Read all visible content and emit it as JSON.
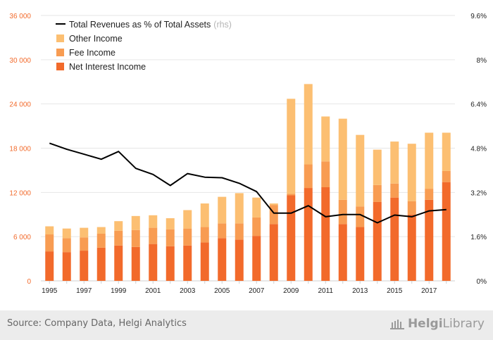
{
  "chart_data": {
    "type": "bar",
    "stacked": true,
    "categories": [
      "1995",
      "1996",
      "1997",
      "1998",
      "1999",
      "2000",
      "2001",
      "2002",
      "2003",
      "2004",
      "2005",
      "2006",
      "2007",
      "2008",
      "2009",
      "2010",
      "2011",
      "2012",
      "2013",
      "2014",
      "2015",
      "2016",
      "2017",
      "2018"
    ],
    "x_tick_labels": [
      "1995",
      "1997",
      "1999",
      "2001",
      "2003",
      "2005",
      "2007",
      "2009",
      "2011",
      "2013",
      "2015",
      "2017"
    ],
    "series": [
      {
        "name": "Net Interest Income",
        "color": "#f26a2b",
        "values": [
          4000,
          3900,
          4100,
          4500,
          4800,
          4600,
          5000,
          4700,
          4800,
          5200,
          5800,
          5600,
          6100,
          7700,
          11600,
          12600,
          12700,
          7700,
          7300,
          10700,
          11300,
          9000,
          11000,
          13400
        ]
      },
      {
        "name": "Fee Income",
        "color": "#f89c52",
        "values": [
          2300,
          1900,
          1800,
          1900,
          2000,
          2300,
          2200,
          2300,
          2300,
          2100,
          2000,
          2200,
          2500,
          2600,
          200,
          3200,
          3500,
          3300,
          2800,
          2300,
          1900,
          1800,
          1500,
          1500
        ]
      },
      {
        "name": "Other Income",
        "color": "#fcbf72",
        "values": [
          1100,
          1300,
          1300,
          900,
          1300,
          1900,
          1700,
          1500,
          2500,
          3200,
          3600,
          4100,
          2700,
          200,
          12900,
          10900,
          6100,
          11000,
          9700,
          4800,
          5700,
          7800,
          7600,
          5200
        ]
      }
    ],
    "line_series": {
      "name": "Total Revenues as % of Total Assets",
      "name_suffix": "(rhs)",
      "color": "#000000",
      "values": [
        4.98,
        4.76,
        4.58,
        4.4,
        4.68,
        4.07,
        3.85,
        3.45,
        3.88,
        3.75,
        3.73,
        3.53,
        3.23,
        2.45,
        2.45,
        2.72,
        2.32,
        2.4,
        2.4,
        2.1,
        2.38,
        2.32,
        2.53,
        2.58
      ]
    },
    "left_axis": {
      "ylim": [
        0,
        36000
      ],
      "ticks": [
        "0",
        "6 000",
        "12 000",
        "18 000",
        "24 000",
        "30 000",
        "36 000"
      ],
      "color": "#f26a2b"
    },
    "right_axis": {
      "ylim": [
        0,
        9.6
      ],
      "ticks": [
        "0%",
        "1.6%",
        "3.2%",
        "4.8%",
        "6.4%",
        "8%",
        "9.6%"
      ]
    },
    "legend_position": "top-left",
    "grid": "horizontal"
  },
  "footer": {
    "source": "Source: Company Data, Helgi Analytics",
    "brand_main": "Helgi",
    "brand_sub": "Library"
  }
}
